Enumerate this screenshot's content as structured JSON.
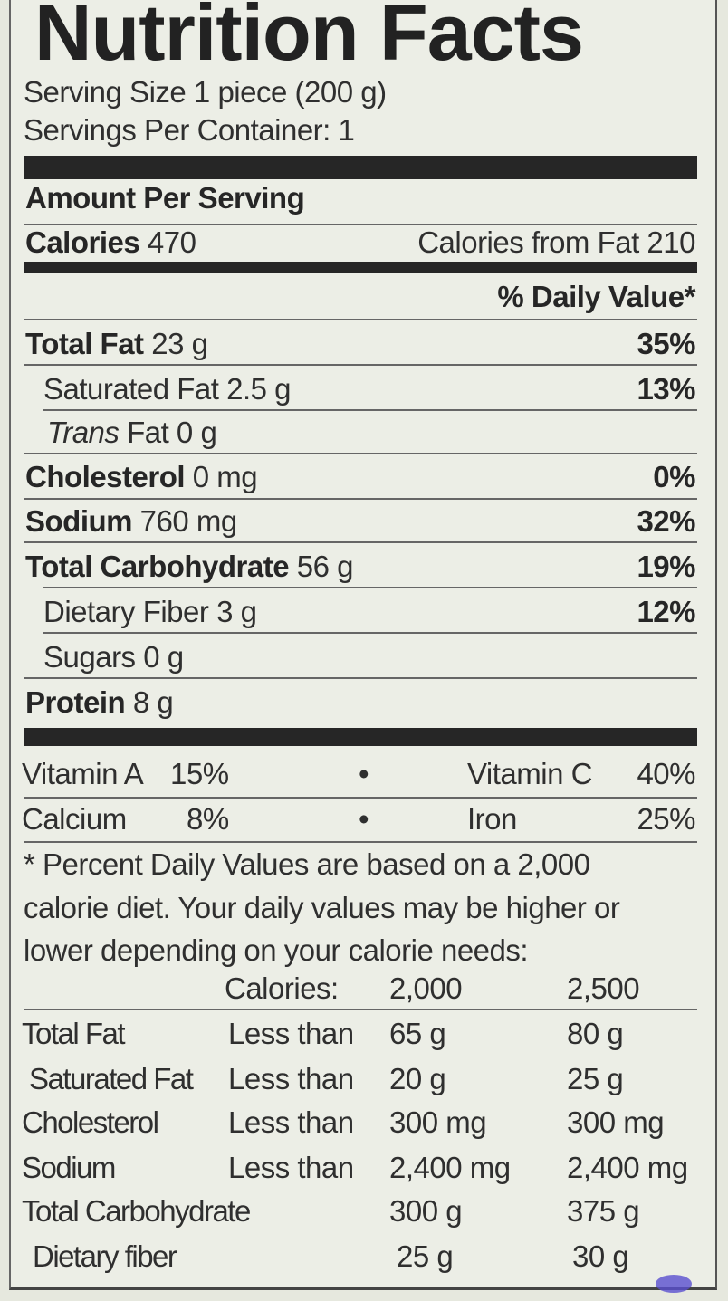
{
  "title": "Nutrition Facts",
  "serving_size": "Serving Size 1 piece (200 g)",
  "servings_per_container": "Servings Per Container: 1",
  "amount_per_serving": "Amount Per Serving",
  "calories": {
    "label": "Calories",
    "value": "470",
    "from_fat": "Calories from Fat 210"
  },
  "dv_header": "% Daily Value*",
  "nutrients": [
    {
      "label": "Total Fat",
      "amount": "23 g",
      "dv": "35%"
    },
    {
      "label": "Saturated Fat",
      "amount": "2.5 g",
      "dv": "13%"
    },
    {
      "label": "Trans",
      "suffix": "Fat 0 g",
      "dv": ""
    },
    {
      "label": "Cholesterol",
      "amount": "0 mg",
      "dv": "0%"
    },
    {
      "label": "Sodium",
      "amount": "760 mg",
      "dv": "32%"
    },
    {
      "label": "Total Carbohydrate",
      "amount": "56 g",
      "dv": "19%"
    },
    {
      "label": "Dietary Fiber",
      "amount": "3 g",
      "dv": "12%"
    },
    {
      "label": "Sugars",
      "amount": "0 g",
      "dv": ""
    },
    {
      "label": "Protein",
      "amount": "8 g",
      "dv": ""
    }
  ],
  "vitamins": [
    {
      "a_label": "Vitamin A",
      "a_value": "15%",
      "bullet": "•",
      "b_label": "Vitamin C",
      "b_value": "40%"
    },
    {
      "a_label": "Calcium",
      "a_value": "8%",
      "bullet": "•",
      "b_label": "Iron",
      "b_value": "25%"
    }
  ],
  "footnote": [
    "* Percent Daily Values are based on a 2,000",
    "calorie diet. Your daily values may be higher or",
    "lower depending on your calorie needs:"
  ],
  "reference_header": {
    "label": "Calories:",
    "col1": "2,000",
    "col2": "2,500"
  },
  "reference_rows": [
    {
      "nutrient": "Total Fat",
      "qual": "Less than",
      "v1": "65 g",
      "v2": "80 g"
    },
    {
      "nutrient": "Saturated Fat",
      "qual": "Less than",
      "v1": "20 g",
      "v2": "25 g"
    },
    {
      "nutrient": "Cholesterol",
      "qual": "Less than",
      "v1": "300 mg",
      "v2": "300 mg"
    },
    {
      "nutrient": "Sodium",
      "qual": "Less than",
      "v1": "2,400 mg",
      "v2": "2,400 mg"
    },
    {
      "nutrient": "Total Carbohydrate",
      "qual": "",
      "v1": "300 g",
      "v2": "375 g"
    },
    {
      "nutrient": "Dietary fiber",
      "qual": "",
      "v1": "25 g",
      "v2": "30 g"
    }
  ]
}
